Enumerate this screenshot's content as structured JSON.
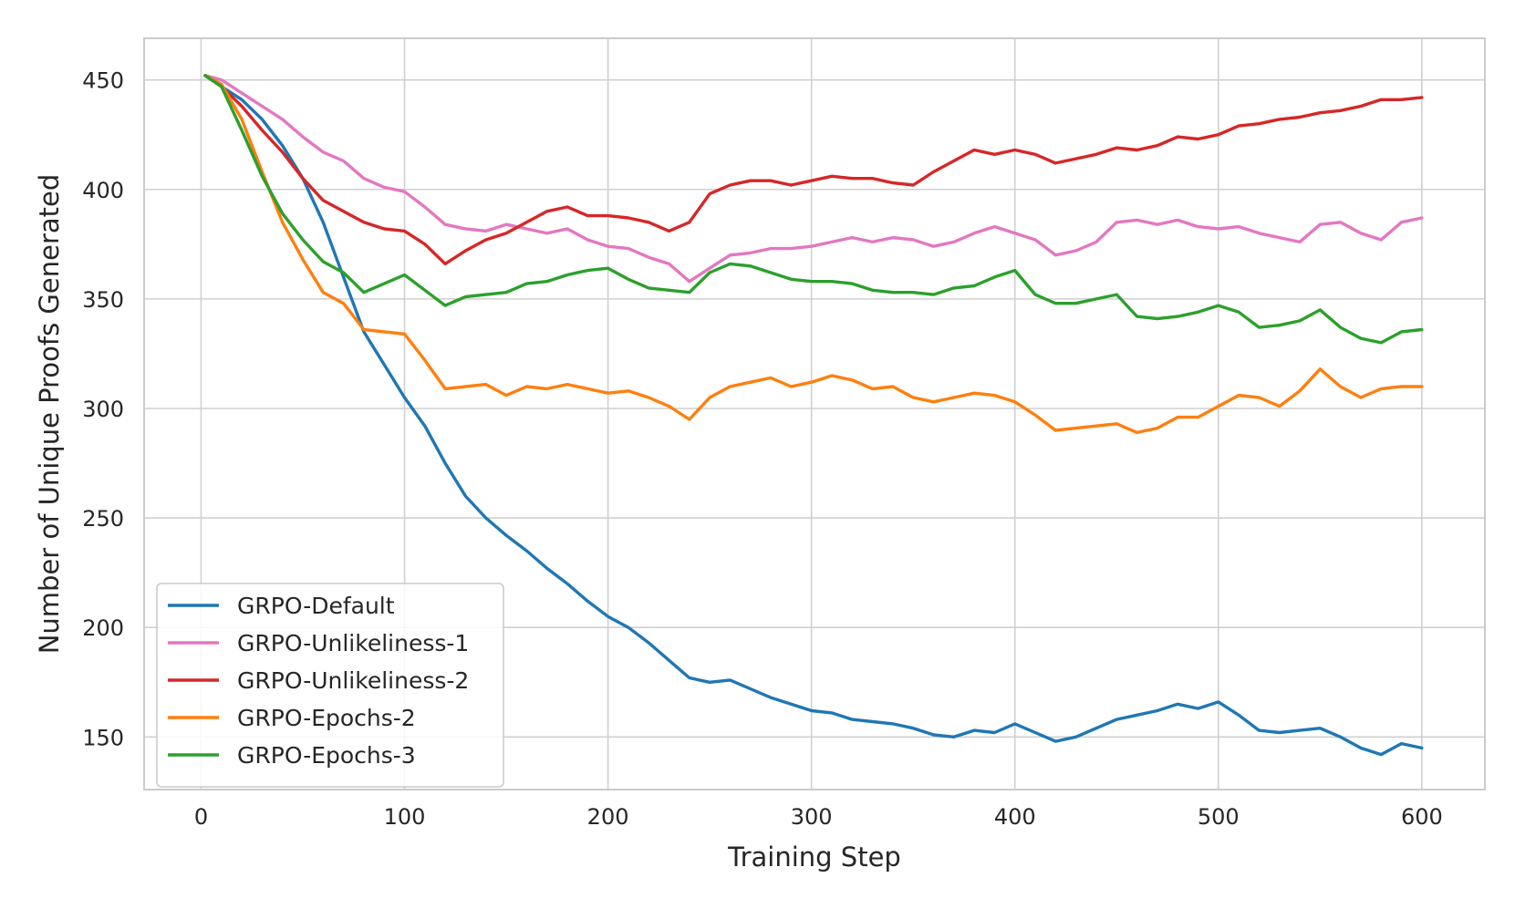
{
  "chart_data": {
    "type": "line",
    "title": "",
    "xlabel": "Training Step",
    "ylabel": "Number of Unique Proofs Generated",
    "xlim": [
      -28,
      631
    ],
    "ylim": [
      126,
      469
    ],
    "xticks": [
      0,
      100,
      200,
      300,
      400,
      500,
      600
    ],
    "yticks": [
      150,
      200,
      250,
      300,
      350,
      400,
      450
    ],
    "grid": true,
    "legend": "lower-left",
    "series": [
      {
        "name": "GRPO-Default",
        "color": "#1f77b4",
        "x": [
          2,
          10,
          20,
          30,
          40,
          50,
          60,
          70,
          80,
          90,
          100,
          110,
          120,
          130,
          140,
          150,
          160,
          170,
          180,
          190,
          200,
          210,
          220,
          230,
          240,
          250,
          260,
          270,
          280,
          290,
          300,
          310,
          320,
          330,
          340,
          350,
          360,
          370,
          380,
          390,
          400,
          410,
          420,
          430,
          440,
          450,
          460,
          470,
          480,
          490,
          500,
          510,
          520,
          530,
          540,
          550,
          560,
          570,
          580,
          590,
          600
        ],
        "y": [
          452,
          447,
          441,
          432,
          420,
          405,
          385,
          360,
          335,
          320,
          305,
          292,
          275,
          260,
          250,
          242,
          235,
          227,
          220,
          212,
          205,
          200,
          193,
          185,
          177,
          175,
          176,
          172,
          168,
          165,
          162,
          161,
          158,
          157,
          156,
          154,
          151,
          150,
          153,
          152,
          156,
          152,
          148,
          150,
          154,
          158,
          160,
          162,
          165,
          163,
          166,
          160,
          153,
          152,
          153,
          154,
          150,
          145,
          142,
          147,
          145
        ]
      },
      {
        "name": "GRPO-Unlikeliness-1",
        "color": "#e377c2",
        "x": [
          2,
          10,
          20,
          30,
          40,
          50,
          60,
          70,
          80,
          90,
          100,
          110,
          120,
          130,
          140,
          150,
          160,
          170,
          180,
          190,
          200,
          210,
          220,
          230,
          240,
          250,
          260,
          270,
          280,
          290,
          300,
          310,
          320,
          330,
          340,
          350,
          360,
          370,
          380,
          390,
          400,
          410,
          420,
          430,
          440,
          450,
          460,
          470,
          480,
          490,
          500,
          510,
          520,
          530,
          540,
          550,
          560,
          570,
          580,
          590,
          600
        ],
        "y": [
          452,
          450,
          444,
          438,
          432,
          424,
          417,
          413,
          405,
          401,
          399,
          392,
          384,
          382,
          381,
          384,
          382,
          380,
          382,
          377,
          374,
          373,
          369,
          366,
          358,
          364,
          370,
          371,
          373,
          373,
          374,
          376,
          378,
          376,
          378,
          377,
          374,
          376,
          380,
          383,
          380,
          377,
          370,
          372,
          376,
          385,
          386,
          384,
          386,
          383,
          382,
          383,
          380,
          378,
          376,
          384,
          385,
          380,
          377,
          385,
          387
        ]
      },
      {
        "name": "GRPO-Unlikeliness-2",
        "color": "#d62728",
        "x": [
          2,
          10,
          20,
          30,
          40,
          50,
          60,
          70,
          80,
          90,
          100,
          110,
          120,
          130,
          140,
          150,
          160,
          170,
          180,
          190,
          200,
          210,
          220,
          230,
          240,
          250,
          260,
          270,
          280,
          290,
          300,
          310,
          320,
          330,
          340,
          350,
          360,
          370,
          380,
          390,
          400,
          410,
          420,
          430,
          440,
          450,
          460,
          470,
          480,
          490,
          500,
          510,
          520,
          530,
          540,
          550,
          560,
          570,
          580,
          590,
          600
        ],
        "y": [
          452,
          447,
          438,
          427,
          417,
          405,
          395,
          390,
          385,
          382,
          381,
          375,
          366,
          372,
          377,
          380,
          385,
          390,
          392,
          388,
          388,
          387,
          385,
          381,
          385,
          398,
          402,
          404,
          404,
          402,
          404,
          406,
          405,
          405,
          403,
          402,
          408,
          413,
          418,
          416,
          418,
          416,
          412,
          414,
          416,
          419,
          418,
          420,
          424,
          423,
          425,
          429,
          430,
          432,
          433,
          435,
          436,
          438,
          441,
          441,
          442
        ]
      },
      {
        "name": "GRPO-Epochs-2",
        "color": "#ff7f0e",
        "x": [
          2,
          10,
          20,
          30,
          40,
          50,
          60,
          70,
          80,
          90,
          100,
          110,
          120,
          130,
          140,
          150,
          160,
          170,
          180,
          190,
          200,
          210,
          220,
          230,
          240,
          250,
          260,
          270,
          280,
          290,
          300,
          310,
          320,
          330,
          340,
          350,
          360,
          370,
          380,
          390,
          400,
          410,
          420,
          430,
          440,
          450,
          460,
          470,
          480,
          490,
          500,
          510,
          520,
          530,
          540,
          550,
          560,
          570,
          580,
          590,
          600
        ],
        "y": [
          452,
          448,
          432,
          408,
          385,
          368,
          353,
          348,
          336,
          335,
          334,
          322,
          309,
          310,
          311,
          306,
          310,
          309,
          311,
          309,
          307,
          308,
          305,
          301,
          295,
          305,
          310,
          312,
          314,
          310,
          312,
          315,
          313,
          309,
          310,
          305,
          303,
          305,
          307,
          306,
          303,
          297,
          290,
          291,
          292,
          293,
          289,
          291,
          296,
          296,
          301,
          306,
          305,
          301,
          308,
          318,
          310,
          305,
          309,
          310,
          310
        ]
      },
      {
        "name": "GRPO-Epochs-3",
        "color": "#2ca02c",
        "x": [
          2,
          10,
          20,
          30,
          40,
          50,
          60,
          70,
          80,
          90,
          100,
          110,
          120,
          130,
          140,
          150,
          160,
          170,
          180,
          190,
          200,
          210,
          220,
          230,
          240,
          250,
          260,
          270,
          280,
          290,
          300,
          310,
          320,
          330,
          340,
          350,
          360,
          370,
          380,
          390,
          400,
          410,
          420,
          430,
          440,
          450,
          460,
          470,
          480,
          490,
          500,
          510,
          520,
          530,
          540,
          550,
          560,
          570,
          580,
          590,
          600
        ],
        "y": [
          452,
          447,
          427,
          406,
          389,
          377,
          367,
          362,
          353,
          357,
          361,
          354,
          347,
          351,
          352,
          353,
          357,
          358,
          361,
          363,
          364,
          359,
          355,
          354,
          353,
          362,
          366,
          365,
          362,
          359,
          358,
          358,
          357,
          354,
          353,
          353,
          352,
          355,
          356,
          360,
          363,
          352,
          348,
          348,
          350,
          352,
          342,
          341,
          342,
          344,
          347,
          344,
          337,
          338,
          340,
          345,
          337,
          332,
          330,
          335,
          336
        ]
      }
    ]
  }
}
